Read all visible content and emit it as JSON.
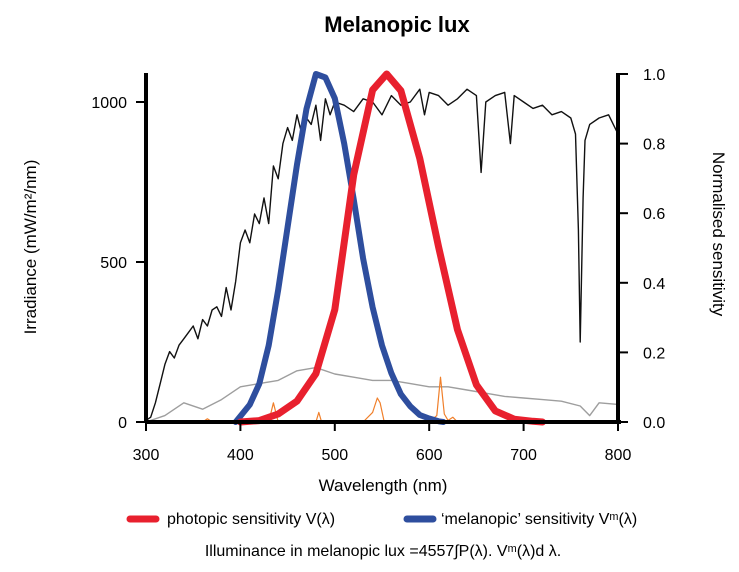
{
  "chart_data": {
    "type": "line",
    "title": "Melanopic lux",
    "xlabel": "Wavelength (nm)",
    "ylabel_left": "Irradiance (mW/m²/nm)",
    "ylabel_right": "Normalised sensitivity",
    "x_ticks": [
      "300",
      "400",
      "500",
      "600",
      "700",
      "800"
    ],
    "y_left_ticks": [
      "0",
      "500",
      "1000"
    ],
    "y_right_ticks": [
      "0.0",
      "0.2",
      "0.4",
      "0.6",
      "0.8",
      "1.0"
    ],
    "xlim": [
      300,
      800
    ],
    "ylim_left": [
      0,
      1100
    ],
    "ylim_right": [
      0,
      1.0
    ],
    "grid": false,
    "legend_position": "bottom",
    "series": [
      {
        "name": "photopic sensitivity V(λ)",
        "axis": "right",
        "color": "#e8202e",
        "x": [
          400,
          420,
          440,
          460,
          480,
          500,
          520,
          540,
          555,
          570,
          590,
          610,
          630,
          650,
          670,
          690,
          710,
          720
        ],
        "values": [
          0.0,
          0.004,
          0.023,
          0.06,
          0.139,
          0.323,
          0.71,
          0.954,
          1.0,
          0.952,
          0.757,
          0.503,
          0.265,
          0.107,
          0.032,
          0.008,
          0.002,
          0.0
        ]
      },
      {
        "name": "‘melanopic’ sensitivity Vᵐ(λ)",
        "axis": "right",
        "color": "#2e4e9e",
        "x": [
          395,
          410,
          420,
          430,
          440,
          450,
          460,
          470,
          480,
          490,
          500,
          510,
          520,
          530,
          540,
          550,
          560,
          570,
          580,
          590,
          600,
          610,
          615
        ],
        "values": [
          0.0,
          0.05,
          0.11,
          0.22,
          0.38,
          0.56,
          0.74,
          0.9,
          1.0,
          0.99,
          0.93,
          0.8,
          0.64,
          0.47,
          0.33,
          0.22,
          0.14,
          0.08,
          0.045,
          0.02,
          0.01,
          0.002,
          0.0
        ]
      },
      {
        "axis": "left",
        "color": "#111111",
        "x": [
          300,
          305,
          310,
          315,
          320,
          325,
          330,
          335,
          340,
          345,
          350,
          355,
          360,
          365,
          370,
          375,
          380,
          385,
          390,
          395,
          400,
          405,
          410,
          415,
          420,
          425,
          430,
          435,
          440,
          445,
          450,
          455,
          460,
          465,
          470,
          475,
          480,
          485,
          490,
          495,
          500,
          510,
          520,
          530,
          540,
          550,
          560,
          570,
          580,
          590,
          595,
          600,
          610,
          620,
          630,
          640,
          650,
          655,
          660,
          670,
          680,
          686,
          690,
          700,
          710,
          720,
          730,
          740,
          750,
          755,
          758,
          760,
          763,
          765,
          770,
          780,
          790,
          800
        ],
        "values": [
          5,
          15,
          60,
          120,
          180,
          220,
          200,
          240,
          260,
          280,
          300,
          260,
          320,
          300,
          350,
          360,
          330,
          420,
          350,
          440,
          560,
          600,
          560,
          650,
          620,
          700,
          620,
          800,
          760,
          870,
          920,
          880,
          960,
          900,
          950,
          930,
          990,
          880,
          1010,
          960,
          1000,
          990,
          970,
          1010,
          1000,
          960,
          1020,
          990,
          1000,
          1040,
          960,
          1030,
          1020,
          990,
          1010,
          1040,
          1020,
          780,
          1000,
          1020,
          1030,
          870,
          1020,
          1000,
          980,
          990,
          960,
          970,
          950,
          900,
          600,
          250,
          700,
          880,
          930,
          950,
          960,
          900
        ]
      },
      {
        "axis": "left",
        "color": "#9e9e9e",
        "x": [
          300,
          320,
          340,
          360,
          380,
          400,
          420,
          440,
          460,
          480,
          500,
          520,
          540,
          560,
          580,
          600,
          620,
          640,
          660,
          680,
          700,
          720,
          740,
          760,
          770,
          780,
          800
        ],
        "values": [
          0,
          20,
          60,
          40,
          70,
          110,
          120,
          130,
          160,
          170,
          150,
          140,
          130,
          130,
          120,
          110,
          110,
          100,
          90,
          80,
          75,
          70,
          65,
          50,
          20,
          60,
          55
        ]
      },
      {
        "axis": "left",
        "color": "#f07f2a",
        "x": [
          300,
          360,
          365,
          370,
          400,
          430,
          435,
          440,
          480,
          483,
          486,
          530,
          540,
          545,
          548,
          552,
          560,
          600,
          608,
          612,
          616,
          620,
          625,
          630,
          700
        ],
        "values": [
          0,
          0,
          10,
          0,
          0,
          0,
          60,
          0,
          0,
          30,
          0,
          0,
          30,
          75,
          60,
          5,
          0,
          0,
          20,
          140,
          25,
          5,
          15,
          0,
          0
        ]
      }
    ],
    "legend": [
      "photopic sensitivity V(λ)",
      "‘melanopic’ sensitivity Vᵐ(λ)"
    ],
    "annotation": "Illuminance in melanopic lux =4557∫P(λ). Vᵐ(λ)d λ."
  }
}
